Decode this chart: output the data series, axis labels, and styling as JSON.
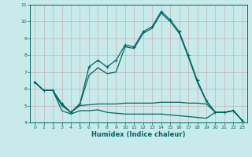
{
  "xlabel": "Humidex (Indice chaleur)",
  "bg_color": "#c8eaea",
  "line_color": "#006666",
  "grid_color": "#cc9999",
  "xlim": [
    -0.5,
    23.5
  ],
  "ylim": [
    4,
    11
  ],
  "xticks": [
    0,
    1,
    2,
    3,
    4,
    5,
    6,
    7,
    8,
    9,
    10,
    11,
    12,
    13,
    14,
    15,
    16,
    17,
    18,
    19,
    20,
    21,
    22,
    23
  ],
  "yticks": [
    4,
    5,
    6,
    7,
    8,
    9,
    10,
    11
  ],
  "series_marked": [
    6.4,
    5.9,
    5.9,
    5.1,
    4.6,
    5.1,
    7.3,
    7.7,
    7.3,
    7.7,
    8.6,
    8.5,
    9.4,
    9.7,
    10.6,
    10.1,
    9.4,
    8.0,
    6.5,
    5.3,
    4.6,
    4.6,
    4.7,
    4.1
  ],
  "series2": [
    6.4,
    5.9,
    5.9,
    5.1,
    4.6,
    5.1,
    6.8,
    7.25,
    6.9,
    7.0,
    8.5,
    8.4,
    9.3,
    9.6,
    10.5,
    10.0,
    9.3,
    7.9,
    6.4,
    5.25,
    4.6,
    4.6,
    4.7,
    4.1
  ],
  "series3": [
    6.4,
    5.9,
    5.9,
    5.0,
    4.6,
    5.0,
    5.05,
    5.1,
    5.1,
    5.1,
    5.15,
    5.15,
    5.15,
    5.15,
    5.2,
    5.2,
    5.2,
    5.15,
    5.15,
    5.1,
    4.6,
    4.6,
    4.7,
    4.1
  ],
  "series4": [
    6.4,
    5.9,
    5.9,
    4.7,
    4.5,
    4.7,
    4.7,
    4.75,
    4.6,
    4.55,
    4.5,
    4.5,
    4.5,
    4.5,
    4.5,
    4.45,
    4.4,
    4.35,
    4.3,
    4.25,
    4.6,
    4.6,
    4.7,
    4.1
  ],
  "marker": "+",
  "markersize": 3.5,
  "linewidth": 0.9
}
